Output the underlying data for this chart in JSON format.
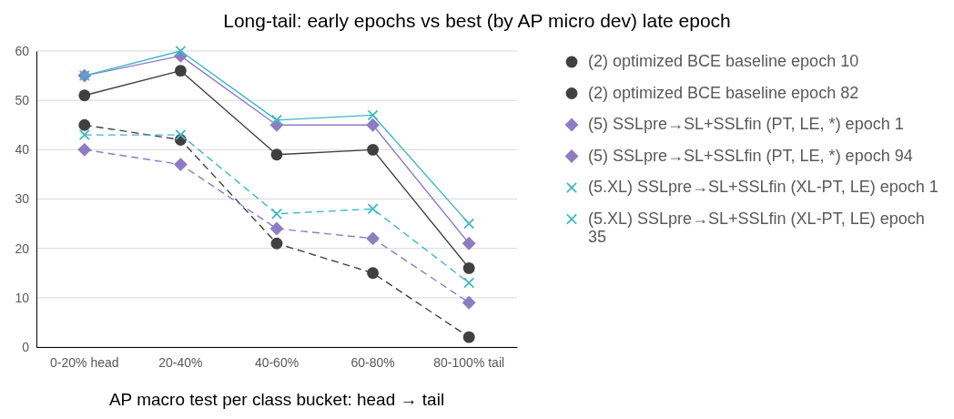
{
  "chart_data": {
    "type": "line",
    "title": "Long-tail: early epochs vs best (by AP micro dev) late epoch",
    "xlabel": "AP macro test per class bucket: head → tail",
    "categories": [
      "0-20% head",
      "20-40%",
      "40-60%",
      "60-80%",
      "80-100% tail"
    ],
    "ylim": [
      0,
      60
    ],
    "yticks": [
      0,
      10,
      20,
      30,
      40,
      50,
      60
    ],
    "grid": "y",
    "legend": "right",
    "series": [
      {
        "name": "(2) optimized BCE baseline epoch 10",
        "color": "#404040",
        "marker": "circle",
        "line_style": "dashed",
        "values": [
          45,
          42,
          21,
          15,
          2
        ]
      },
      {
        "name": "(2) optimized BCE baseline epoch 82",
        "color": "#404040",
        "marker": "circle",
        "line_style": "solid",
        "values": [
          51,
          56,
          39,
          40,
          16
        ]
      },
      {
        "name": "(5) SSLpre→SL+SSLfin (PT, LE, *) epoch 1",
        "color": "#8e7cc3",
        "marker": "diamond",
        "line_style": "dashed",
        "values": [
          40,
          37,
          24,
          22,
          9
        ]
      },
      {
        "name": "(5) SSLpre→SL+SSLfin (PT, LE, *) epoch 94",
        "color": "#8e7cc3",
        "marker": "diamond",
        "line_style": "solid",
        "values": [
          55,
          59,
          45,
          45,
          21
        ]
      },
      {
        "name": "(5.XL) SSLpre→SL+SSLfin (XL-PT, LE) epoch 1",
        "color": "#3fb8c4",
        "marker": "cross",
        "line_style": "dashed",
        "values": [
          43,
          43,
          27,
          28,
          13
        ]
      },
      {
        "name": "(5.XL) SSLpre→SL+SSLfin (XL-PT, LE) epoch 35",
        "color": "#3fb8c4",
        "marker": "cross",
        "line_style": "solid",
        "values": [
          55,
          60,
          46,
          47,
          25
        ]
      }
    ]
  }
}
